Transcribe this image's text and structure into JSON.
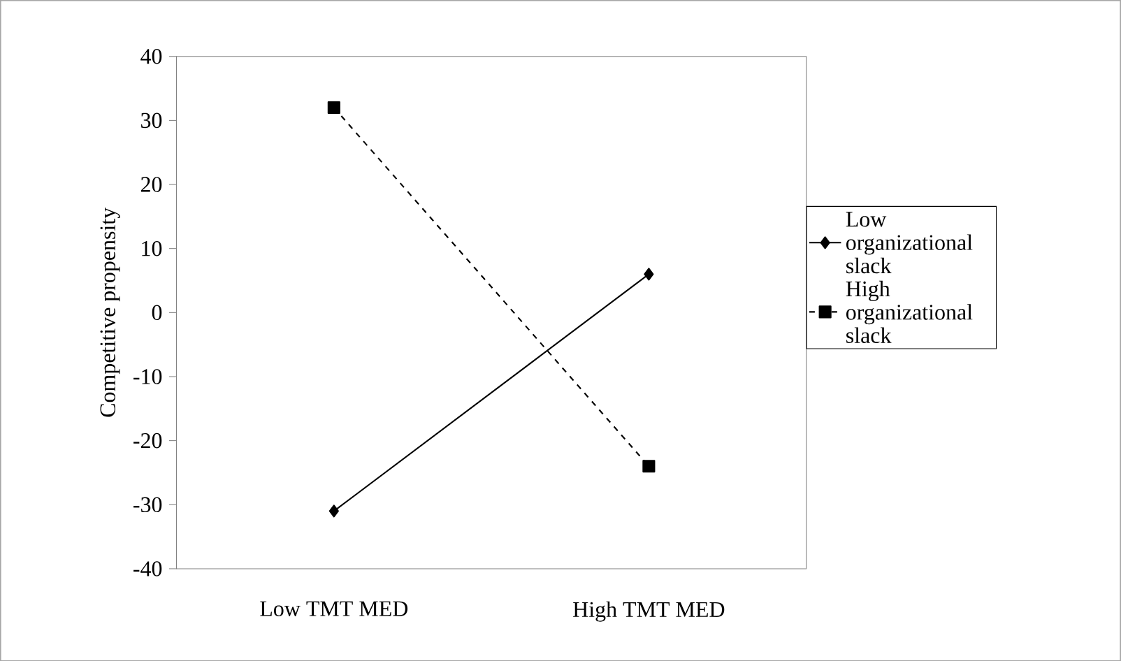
{
  "chart_data": {
    "type": "line",
    "ylabel": "Competitive propensity",
    "categories": [
      "Low TMT MED",
      "High TMT MED"
    ],
    "series": [
      {
        "name": "Low organizational slack",
        "color": "#000000",
        "values": [
          -31,
          6
        ],
        "marker": "diamond",
        "line_style": "solid"
      },
      {
        "name": "High organizational slack",
        "color": "#000000",
        "values": [
          32,
          -24
        ],
        "marker": "square",
        "line_style": "dashed"
      }
    ],
    "ylim": [
      -40,
      40
    ],
    "yticks": [
      -40,
      -30,
      -20,
      -10,
      0,
      10,
      20,
      30,
      40
    ],
    "grid": false,
    "legend": "right"
  }
}
